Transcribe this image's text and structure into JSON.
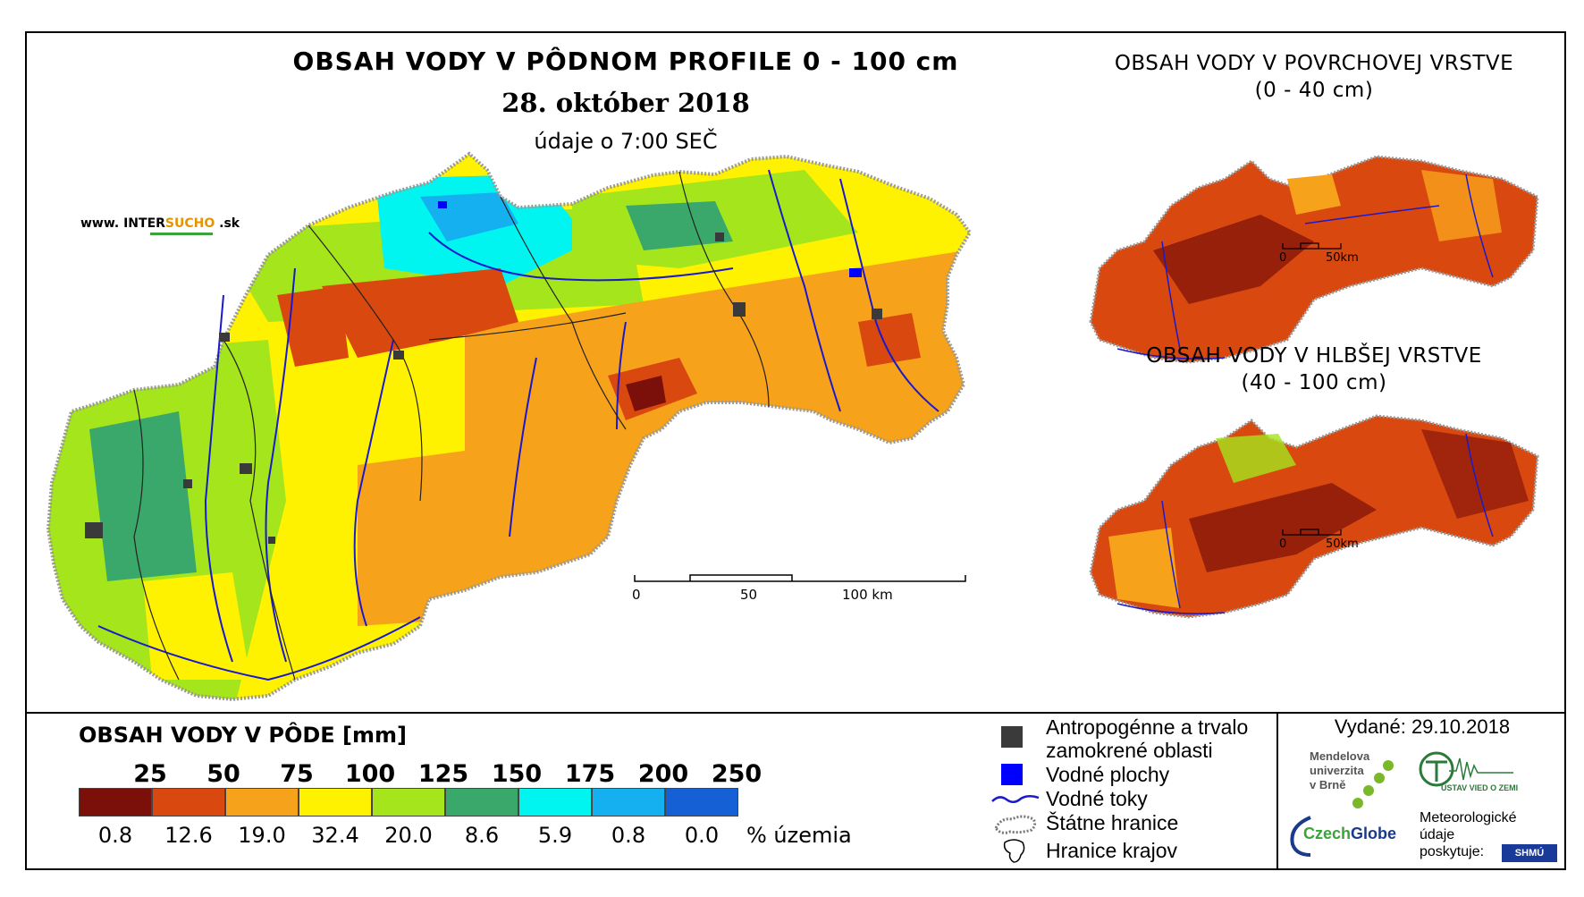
{
  "main": {
    "title": "OBSAH VODY V PÔDNOM PROFILE 0 - 100 cm",
    "date": "28. október 2018",
    "time": "údaje o 7:00 SEČ",
    "web_prefix": "www. INTER",
    "web_brand": "SUCHO",
    "web_suffix": " .sk",
    "scale": [
      "0",
      "50",
      "100 km"
    ]
  },
  "inset_top": {
    "title_line1": "OBSAH VODY V POVRCHOVEJ VRSTVE",
    "title_line2": "(0 - 40 cm)",
    "scale": [
      "0",
      "50km"
    ]
  },
  "inset_bottom": {
    "title_line1": "OBSAH VODY V HLBŠEJ VRSTVE",
    "title_line2": "(40 - 100 cm)",
    "scale": [
      "0",
      "50km"
    ]
  },
  "legend": {
    "title": "OBSAH VODY V PÔDE [mm]",
    "thresholds": [
      "25",
      "50",
      "75",
      "100",
      "125",
      "150",
      "175",
      "200",
      "250"
    ],
    "colors": [
      "#7b0f0a",
      "#d9480f",
      "#f7a21b",
      "#fff200",
      "#a5e51c",
      "#3aa86a",
      "#00f5f0",
      "#14b0f0",
      "#1660d6"
    ],
    "percents": [
      "0.8",
      "12.6",
      "19.0",
      "32.4",
      "20.0",
      "8.6",
      "5.9",
      "0.8",
      "0.0"
    ],
    "percent_unit": "% územia"
  },
  "key": {
    "urban_line1": "Antropogénne a trvalo",
    "urban_line2": "zamokrené oblasti",
    "water_bodies": "Vodné plochy",
    "rivers": "Vodné toky",
    "state_border": "Štátne hranice",
    "region_border": "Hranice krajov",
    "urban_color": "#3a3a3a",
    "water_color": "#0000ff"
  },
  "footer": {
    "issued": "Vydané: 29.10.2018",
    "mendel_line1": "Mendelova",
    "mendel_line2": "univerzita",
    "mendel_line3": "v Brně",
    "czechglobe_a": "Czech",
    "czechglobe_b": "Globe",
    "ustav": "ÚSTAV VIED O ZEMI",
    "meteo_line1": "Meteorologické",
    "meteo_line2": "údaje",
    "meteo_line3": "poskytuje:",
    "shmu": "SHMÚ"
  }
}
